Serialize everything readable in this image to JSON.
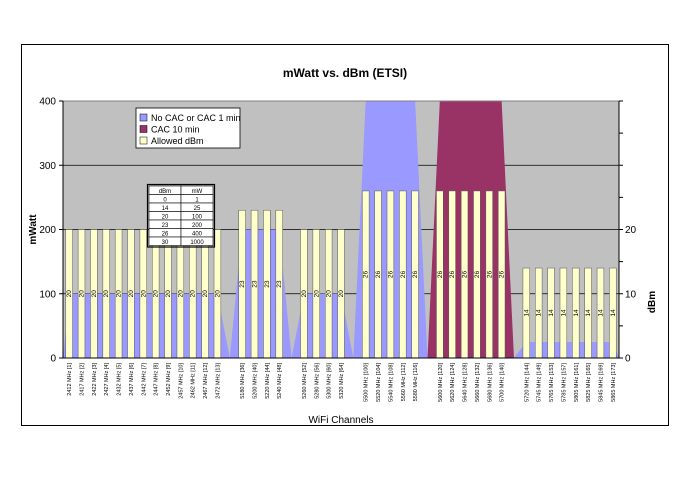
{
  "chart_data": {
    "type": "area",
    "title": "mWatt vs. dBm (ETSI)",
    "xlabel": "WiFi Channels",
    "ylabel_left": "mWatt",
    "ylabel_right": "dBm",
    "ylim_left": [
      0,
      400
    ],
    "ylim_right": [
      0,
      40
    ],
    "yticks_left": [
      "0",
      "100",
      "200",
      "300",
      "400"
    ],
    "yticks_right": [
      "0",
      "10",
      "20"
    ],
    "grid": true,
    "legend_position": "top-left",
    "colors": {
      "plot_bg": "#c0c0c0",
      "no_cac": "#9999ff",
      "cac10": "#993366",
      "allowed": "#ffffcc"
    },
    "categories": [
      "2412 MHz [1]",
      "2417 MHz [2]",
      "2422 MHz [3]",
      "2427 MHz [4]",
      "2432 MHz [5]",
      "2437 MHz [6]",
      "2442 MHz [7]",
      "2447 MHz [8]",
      "2452 MHz [9]",
      "2457 MHz [10]",
      "2462 MHz [11]",
      "2467 MHz [12]",
      "2472 MHz [13]",
      "",
      "5180 MHz [36]",
      "5200 MHz [40]",
      "5220 MHz [44]",
      "5240 MHz [48]",
      "",
      "5260 MHz [52]",
      "5280 MHz [56]",
      "5300 MHz [60]",
      "5320 MHz [64]",
      "",
      "5500 MHz [100]",
      "5520 MHz [104]",
      "5540 MHz [108]",
      "5560 MHz [112]",
      "5580 MHz [116]",
      "",
      "5600 MHz [120]",
      "5620 MHz [124]",
      "5640 MHz [128]",
      "5660 MHz [132]",
      "5680 MHz [136]",
      "5700 MHz [140]",
      "",
      "5720 MHz [144]",
      "5745 MHz [149]",
      "5765 MHz [153]",
      "5785 MHz [157]",
      "5805 MHz [161]",
      "5825 MHz [165]",
      "5845 MHz [169]",
      "5865 MHz [173]"
    ],
    "series": [
      {
        "name": "No CAC or CAC 1 min",
        "kind": "area",
        "axis": "left",
        "values": [
          100,
          100,
          100,
          100,
          100,
          100,
          100,
          100,
          100,
          100,
          100,
          100,
          100,
          0,
          200,
          200,
          200,
          200,
          0,
          100,
          100,
          100,
          100,
          0,
          400,
          400,
          400,
          400,
          400,
          0,
          0,
          0,
          0,
          0,
          0,
          0,
          0,
          25,
          25,
          25,
          25,
          25,
          25,
          25,
          25
        ]
      },
      {
        "name": "CAC 10 min",
        "kind": "area",
        "axis": "left",
        "values": [
          0,
          0,
          0,
          0,
          0,
          0,
          0,
          0,
          0,
          0,
          0,
          0,
          0,
          0,
          0,
          0,
          0,
          0,
          0,
          0,
          0,
          0,
          0,
          0,
          0,
          0,
          0,
          0,
          0,
          0,
          400,
          400,
          400,
          400,
          400,
          400,
          0,
          0,
          0,
          0,
          0,
          0,
          0,
          0,
          0
        ]
      },
      {
        "name": "Allowed dBm",
        "kind": "bar",
        "axis": "right",
        "values": [
          20,
          20,
          20,
          20,
          20,
          20,
          20,
          20,
          20,
          20,
          20,
          20,
          20,
          null,
          23,
          23,
          23,
          23,
          null,
          20,
          20,
          20,
          20,
          null,
          26,
          26,
          26,
          26,
          26,
          null,
          26,
          26,
          26,
          26,
          26,
          26,
          null,
          14,
          14,
          14,
          14,
          14,
          14,
          14,
          14
        ]
      }
    ],
    "inset_table": {
      "headers": [
        "dBm",
        "mW"
      ],
      "rows": [
        [
          "0",
          "1"
        ],
        [
          "14",
          "25"
        ],
        [
          "20",
          "100"
        ],
        [
          "23",
          "200"
        ],
        [
          "26",
          "400"
        ],
        [
          "30",
          "1000"
        ]
      ]
    }
  }
}
